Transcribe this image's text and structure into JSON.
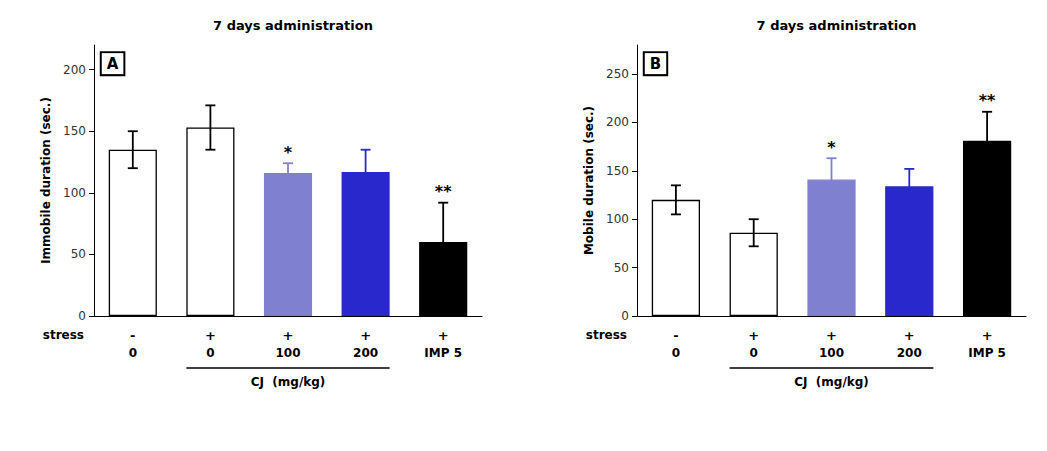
{
  "chart_data": [
    {
      "type": "bar",
      "title": "7 days administration",
      "y_label": "Immobile duration (sec.)",
      "categories": [
        "0",
        "0",
        "100",
        "200",
        "IMP 5"
      ],
      "values": [
        135,
        153,
        116,
        117,
        60
      ],
      "errors": [
        15,
        18,
        8,
        18,
        32
      ],
      "colors": [
        "white",
        "white",
        "#8080D0",
        "#2828CC",
        "black"
      ],
      "ylim": [
        0,
        220
      ],
      "yticks": [
        0,
        50,
        100,
        150,
        200
      ],
      "grid": false,
      "annotations": {
        "panel_label": "A",
        "row_label": "stress",
        "row_values": [
          "-",
          "+",
          "+",
          "+",
          "+"
        ],
        "group_label": "CJ  (mg/kg)",
        "group_members": [
          false,
          true,
          true,
          true,
          false
        ],
        "significance": [
          null,
          null,
          "*",
          null,
          "**"
        ]
      }
    },
    {
      "type": "bar",
      "title": "7 days administration",
      "y_label": "Mobile duration (sec.)",
      "categories": [
        "0",
        "0",
        "100",
        "200",
        "IMP 5"
      ],
      "values": [
        120,
        86,
        141,
        134,
        181
      ],
      "errors": [
        15,
        14,
        22,
        18,
        30
      ],
      "colors": [
        "white",
        "white",
        "#8080D0",
        "#2828CC",
        "black"
      ],
      "ylim": [
        0,
        280
      ],
      "yticks": [
        0,
        50,
        100,
        150,
        200,
        250
      ],
      "grid": false,
      "annotations": {
        "panel_label": "B",
        "row_label": "stress",
        "row_values": [
          "-",
          "+",
          "+",
          "+",
          "+"
        ],
        "group_label": "CJ  (mg/kg)",
        "group_members": [
          false,
          true,
          true,
          true,
          false
        ],
        "significance": [
          null,
          null,
          "*",
          null,
          "**"
        ]
      }
    }
  ]
}
